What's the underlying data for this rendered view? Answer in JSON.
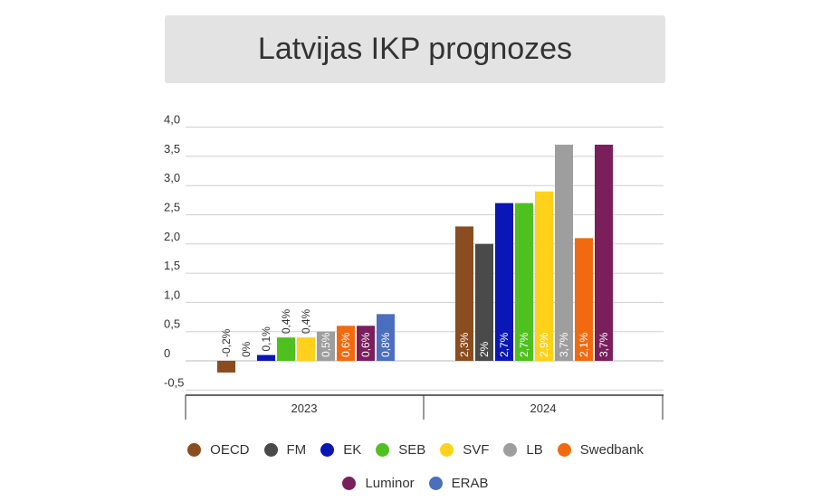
{
  "title": "Latvijas IKP prognozes",
  "chart_data": {
    "type": "bar",
    "title": "Latvijas IKP prognozes",
    "categories": [
      "2023",
      "2024"
    ],
    "ylim": [
      -0.5,
      4.0
    ],
    "yticks": [
      "4,0",
      "3,5",
      "3,0",
      "2,5",
      "2,0",
      "1,5",
      "1,0",
      "0,5",
      "0",
      "-0,5"
    ],
    "ytick_values": [
      4.0,
      3.5,
      3.0,
      2.5,
      2.0,
      1.5,
      1.0,
      0.5,
      0,
      -0.5
    ],
    "grid": true,
    "legend_position": "bottom",
    "series": [
      {
        "name": "OECD",
        "color": "#8b4c1f",
        "values": [
          -0.2,
          2.3
        ],
        "labels": [
          "-0,2%",
          "2,3%"
        ]
      },
      {
        "name": "FM",
        "color": "#4a4a4a",
        "values": [
          0,
          2.0
        ],
        "labels": [
          "0%",
          "2%"
        ]
      },
      {
        "name": "EK",
        "color": "#0a16b5",
        "values": [
          0.1,
          2.7
        ],
        "labels": [
          "0,1%",
          "2,7%"
        ]
      },
      {
        "name": "SEB",
        "color": "#4fc11f",
        "values": [
          0.4,
          2.7
        ],
        "labels": [
          "0,4%",
          "2,7%"
        ]
      },
      {
        "name": "SVF",
        "color": "#ffd11a",
        "values": [
          0.4,
          2.9
        ],
        "labels": [
          "0,4%",
          "2,9%"
        ]
      },
      {
        "name": "LB",
        "color": "#9e9e9e",
        "values": [
          0.5,
          3.7
        ],
        "labels": [
          "0,5%",
          "3,7%"
        ]
      },
      {
        "name": "Swedbank",
        "color": "#f26a0f",
        "values": [
          0.6,
          2.1
        ],
        "labels": [
          "0,6%",
          "2,1%"
        ]
      },
      {
        "name": "Luminor",
        "color": "#7a1f5c",
        "values": [
          0.6,
          3.7
        ],
        "labels": [
          "0,6%",
          "3,7%"
        ]
      },
      {
        "name": "ERAB",
        "color": "#4a6fbf",
        "values": [
          0.8,
          null
        ],
        "labels": [
          "0,8%",
          ""
        ]
      }
    ]
  }
}
